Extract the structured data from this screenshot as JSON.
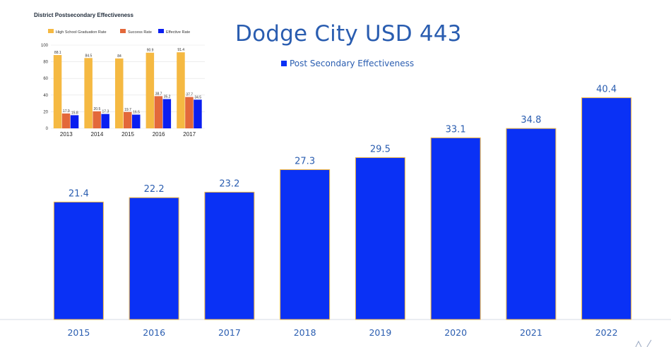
{
  "chart_data": [
    {
      "type": "bar",
      "title": "Dodge City USD 443",
      "categories": [
        "2015",
        "2016",
        "2017",
        "2018",
        "2019",
        "2020",
        "2021",
        "2022"
      ],
      "series": [
        {
          "name": "Post Secondary Effectiveness",
          "values": [
            21.4,
            22.2,
            23.2,
            27.3,
            29.5,
            33.1,
            34.8,
            40.4
          ],
          "color": "#0a31f5"
        }
      ],
      "ylim": [
        0,
        46
      ],
      "grid": false,
      "legend": "top-center",
      "data_labels": true,
      "label_color": "#2a5db0"
    },
    {
      "type": "bar",
      "title": "District Postsecondary Effectiveness",
      "categories": [
        "2013",
        "2014",
        "2015",
        "2016",
        "2017"
      ],
      "series": [
        {
          "name": "High School Graduation Rate",
          "values": [
            88.1,
            84.5,
            84,
            90.9,
            91.4
          ],
          "color": "#f5b942"
        },
        {
          "name": "Success Rate",
          "values": [
            17.9,
            20.5,
            19.7,
            38.7,
            37.7
          ],
          "color": "#e3683a"
        },
        {
          "name": "Effective Rate",
          "values": [
            15.8,
            17.3,
            16.5,
            35.2,
            34.5
          ],
          "color": "#0a1ef0"
        }
      ],
      "y_ticks": [
        0,
        20,
        40,
        60,
        80,
        100
      ],
      "ylim": [
        0,
        100
      ],
      "grid": true,
      "legend": "top"
    }
  ]
}
